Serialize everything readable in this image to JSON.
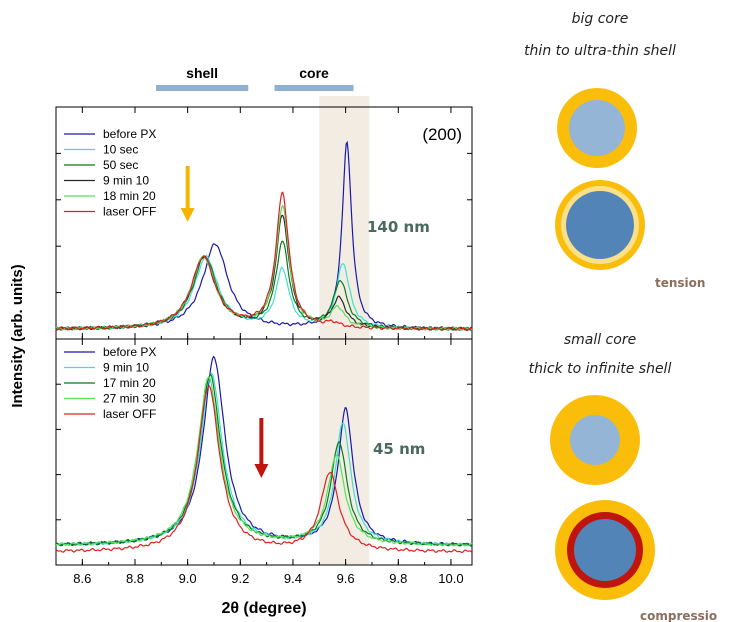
{
  "chart_data": {
    "type": "line",
    "xlabel": "2θ (degree)",
    "ylabel": "Intensity (arb. units)",
    "xlim": [
      8.5,
      10.08
    ],
    "xticks": [
      "8.6",
      "8.8",
      "9.0",
      "9.2",
      "9.4",
      "9.6",
      "9.8",
      "10.0"
    ],
    "grid": false,
    "region_labels": [
      {
        "text": "shell",
        "range": [
          8.88,
          9.23
        ],
        "color": "#8fb0d0"
      },
      {
        "text": "core",
        "range": [
          9.33,
          9.63
        ],
        "color": "#8fb0d0"
      }
    ],
    "highlight_band": {
      "range": [
        9.5,
        9.69
      ],
      "color": "#f3ece3"
    },
    "panels": [
      {
        "id": "top",
        "peak_label": "(200)",
        "size_label": "140 nm",
        "arrow": {
          "x": 9.0,
          "color": "#f5b400",
          "direction": "down"
        },
        "ylim": [
          0,
          1
        ],
        "series": [
          {
            "name": "before PX",
            "color": "#1a1aaa",
            "shell": {
              "c": 9.105,
              "h": 0.38,
              "w": 0.058
            },
            "core": {
              "c": 9.605,
              "h": 0.83,
              "w": 0.022
            },
            "base": 0.025
          },
          {
            "name": "10 sec",
            "color": "#40e0d0",
            "shell": {
              "c": 9.07,
              "h": 0.32,
              "w": 0.055
            },
            "core": {
              "c": 9.36,
              "h": 0.26,
              "w": 0.03
            },
            "core2": {
              "c": 9.59,
              "h": 0.29,
              "w": 0.03
            },
            "base": 0.025
          },
          {
            "name": "50 sec",
            "color": "#0b7a1e",
            "shell": {
              "c": 9.065,
              "h": 0.32,
              "w": 0.055
            },
            "core": {
              "c": 9.36,
              "h": 0.38,
              "w": 0.03
            },
            "core2": {
              "c": 9.58,
              "h": 0.21,
              "w": 0.032
            },
            "base": 0.025
          },
          {
            "name": "9 min 10",
            "color": "#2a2a2a",
            "shell": {
              "c": 9.06,
              "h": 0.32,
              "w": 0.055
            },
            "core": {
              "c": 9.36,
              "h": 0.5,
              "w": 0.03
            },
            "core2": {
              "c": 9.575,
              "h": 0.13,
              "w": 0.032
            },
            "base": 0.025
          },
          {
            "name": "18 min 20",
            "color": "#58e05a",
            "shell": {
              "c": 9.06,
              "h": 0.32,
              "w": 0.055
            },
            "core": {
              "c": 9.36,
              "h": 0.54,
              "w": 0.03
            },
            "core2": {
              "c": 9.57,
              "h": 0.09,
              "w": 0.032
            },
            "base": 0.025
          },
          {
            "name": "laser OFF",
            "color": "#e02020",
            "shell": {
              "c": 9.06,
              "h": 0.32,
              "w": 0.055
            },
            "core": {
              "c": 9.36,
              "h": 0.6,
              "w": 0.03
            },
            "core2": {
              "c": 9.55,
              "h": 0.02,
              "w": 0.03
            },
            "base": 0.025
          }
        ]
      },
      {
        "id": "bottom",
        "size_label": "45 nm",
        "arrow": {
          "x": 9.28,
          "color": "#c0140e",
          "direction": "down"
        },
        "ylim": [
          0,
          1
        ],
        "series": [
          {
            "name": "before PX",
            "color": "#1a1aaa",
            "shell": {
              "c": 9.1,
              "h": 0.86,
              "w": 0.05
            },
            "core": {
              "c": 9.6,
              "h": 0.62,
              "w": 0.035
            },
            "base": 0.07
          },
          {
            "name": "9 min 10",
            "color": "#40e0d0",
            "shell": {
              "c": 9.09,
              "h": 0.79,
              "w": 0.05
            },
            "core": {
              "c": 9.59,
              "h": 0.56,
              "w": 0.036
            },
            "base": 0.07
          },
          {
            "name": "17 min 20",
            "color": "#0b7a1e",
            "shell": {
              "c": 9.085,
              "h": 0.78,
              "w": 0.05
            },
            "core": {
              "c": 9.575,
              "h": 0.47,
              "w": 0.038
            },
            "base": 0.07
          },
          {
            "name": "27 min 30",
            "color": "#58e05a",
            "shell": {
              "c": 9.08,
              "h": 0.77,
              "w": 0.05
            },
            "core": {
              "c": 9.565,
              "h": 0.41,
              "w": 0.04
            },
            "base": 0.07
          },
          {
            "name": "laser OFF",
            "color": "#e02020",
            "shell": {
              "c": 9.08,
              "h": 0.76,
              "w": 0.05
            },
            "core": {
              "c": 9.54,
              "h": 0.36,
              "w": 0.042
            },
            "base": 0.04
          }
        ]
      }
    ]
  },
  "schematics": {
    "top_caption": [
      "big core",
      "thin to ultra-thin shell"
    ],
    "top_strain_label": "tension",
    "bottom_caption": [
      "small core",
      "thick to infinite shell"
    ],
    "bottom_strain_label": "compressio",
    "colors": {
      "shell": "#f9bd0a",
      "shell_light": "#fbe08a",
      "core_light": "#94b5d6",
      "core_dark": "#5384b8",
      "compression_ring": "#c0140e",
      "strain_text": "#8a6e5e",
      "size_text": "#4a6a60"
    }
  }
}
